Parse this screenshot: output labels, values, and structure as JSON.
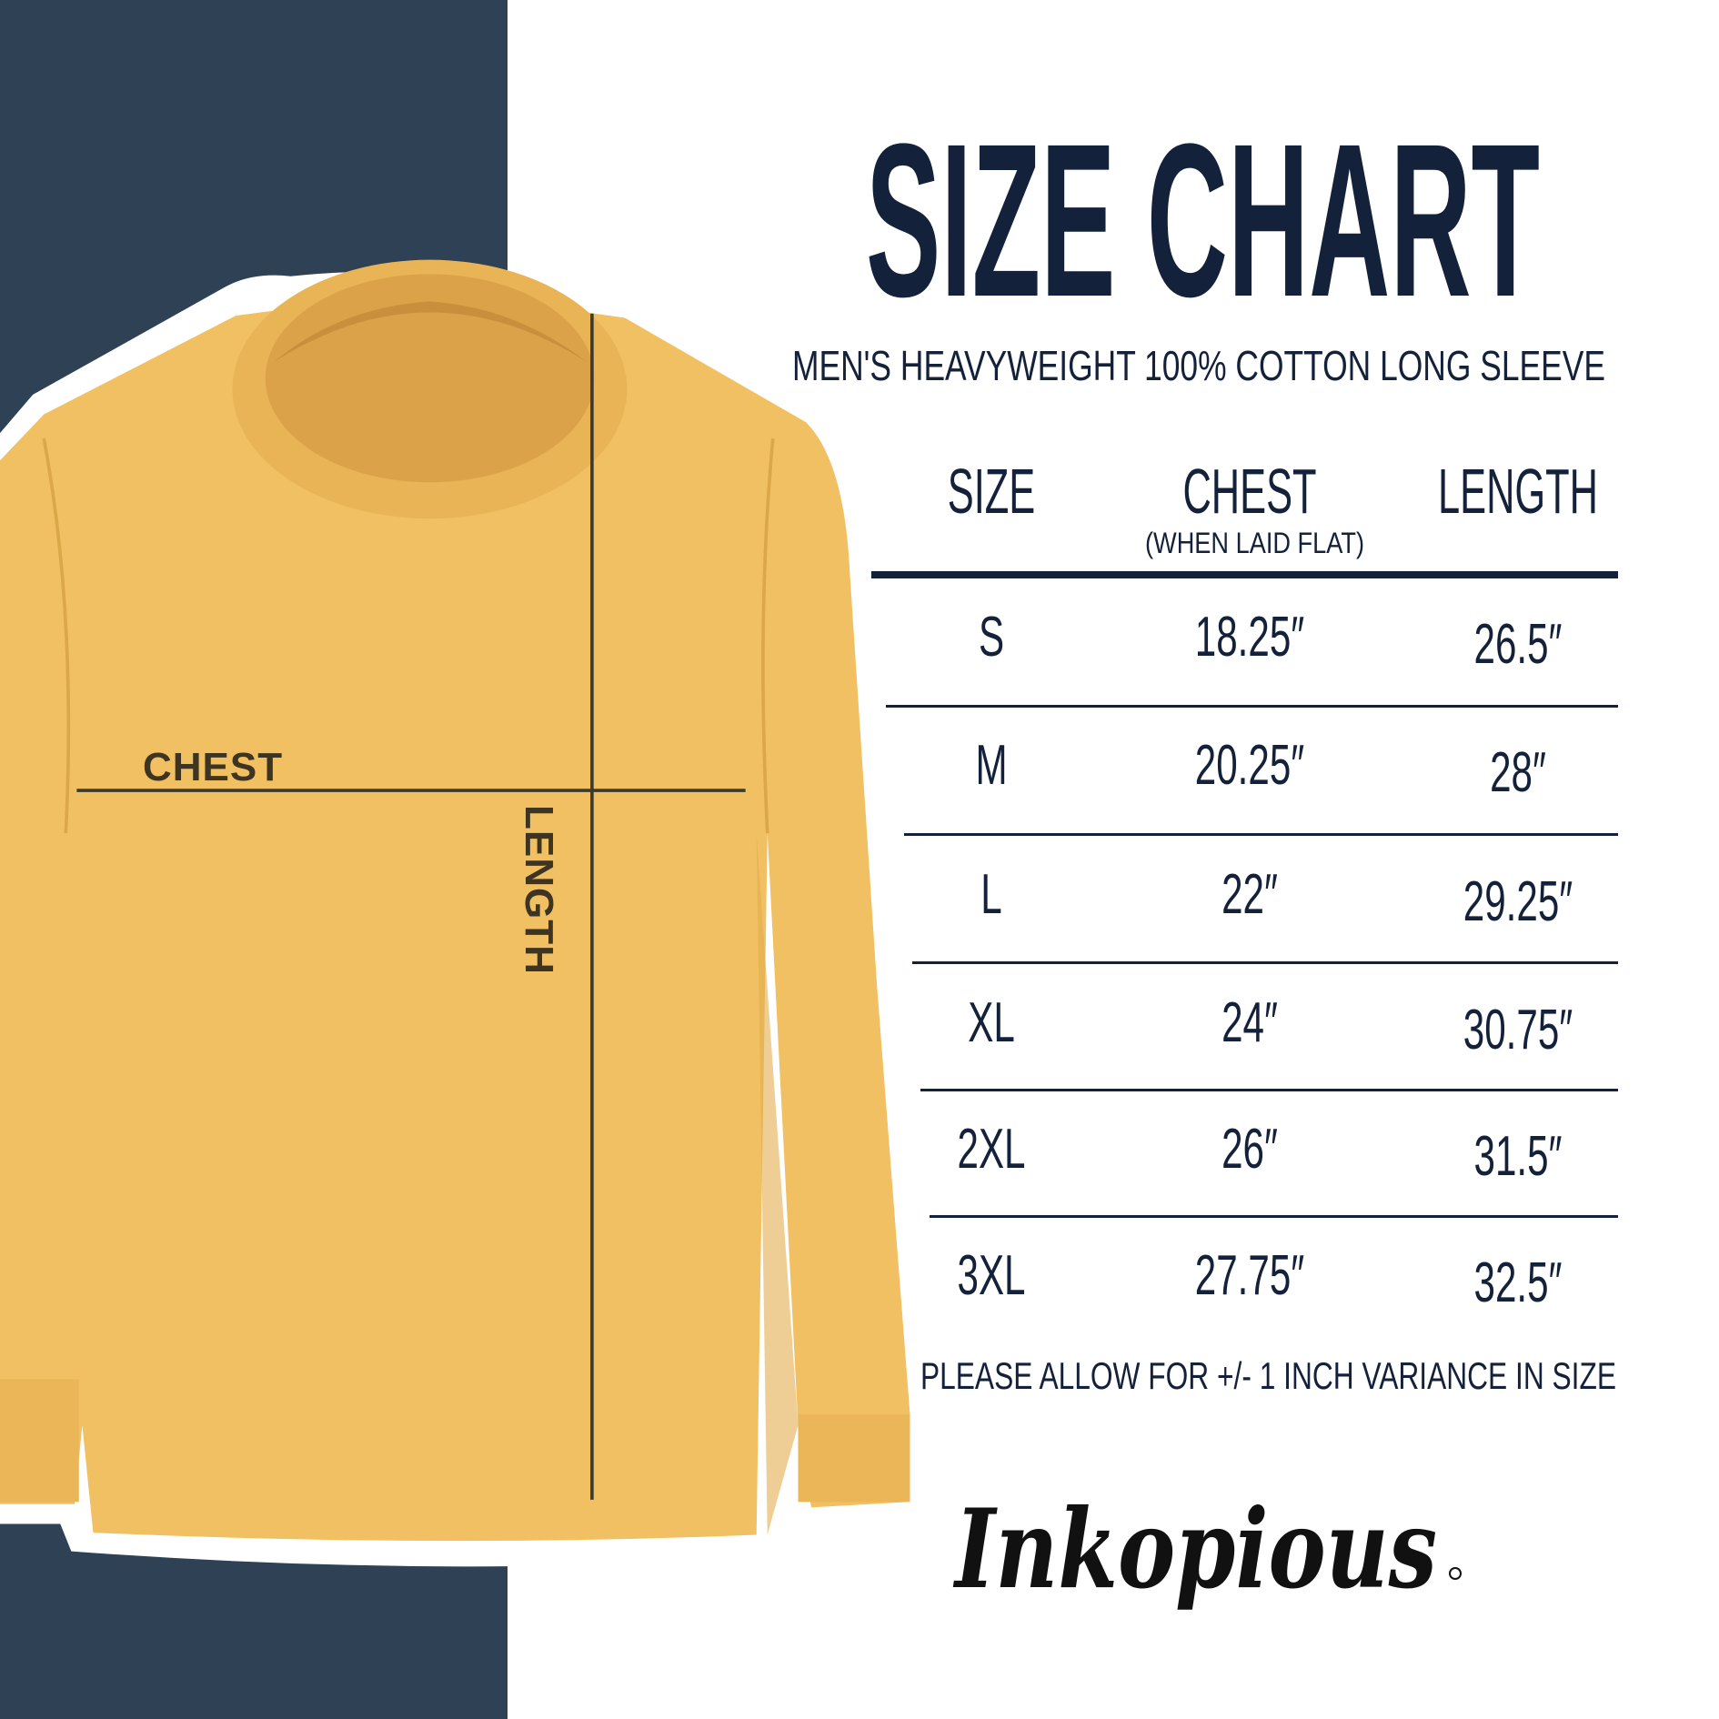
{
  "header": {
    "title": "SIZE CHART",
    "subtitle": "MEN'S HEAVYWEIGHT 100% COTTON LONG SLEEVE"
  },
  "shirt": {
    "chest_label": "CHEST",
    "length_label": "LENGTH",
    "color": "#f0c062"
  },
  "table": {
    "columns": [
      {
        "label": "SIZE"
      },
      {
        "label": "CHEST",
        "sublabel": "(WHEN LAID FLAT)"
      },
      {
        "label": "LENGTH"
      }
    ],
    "rows": [
      {
        "size": "S",
        "chest": "18.25″",
        "length": "26.5″"
      },
      {
        "size": "M",
        "chest": "20.25″",
        "length": "28″"
      },
      {
        "size": "L",
        "chest": "22″",
        "length": "29.25″"
      },
      {
        "size": "XL",
        "chest": "24″",
        "length": "30.75″"
      },
      {
        "size": "2XL",
        "chest": "26″",
        "length": "31.5″"
      },
      {
        "size": "3XL",
        "chest": "27.75″",
        "length": "32.5″"
      }
    ]
  },
  "note": "PLEASE ALLOW FOR +/- 1 INCH VARIANCE IN SIZE",
  "brand": {
    "logo_text": "Inkopious"
  },
  "colors": {
    "navy_panel": "#2e4155",
    "text": "#14213a",
    "shirt": "#f0c062"
  }
}
